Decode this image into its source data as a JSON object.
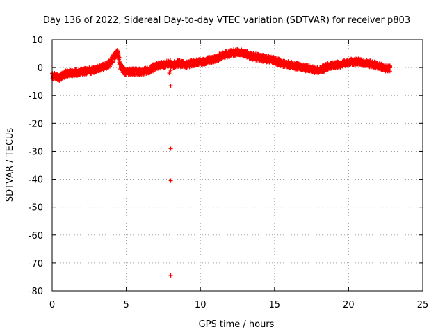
{
  "chart_data": {
    "type": "scatter",
    "title": "Day 136 of 2022, Sidereal Day-to-day VTEC variation (SDTVAR) for receiver p803",
    "xlabel": "GPS time / hours",
    "ylabel": "SDTVAR / TECUs",
    "xlim": [
      0,
      25
    ],
    "ylim": [
      -80,
      10
    ],
    "xticks": [
      0,
      5,
      10,
      15,
      20,
      25
    ],
    "yticks": [
      10,
      0,
      -10,
      -20,
      -30,
      -40,
      -50,
      -60,
      -70,
      -80
    ],
    "grid": true,
    "marker": "plus",
    "color": "#ff0000",
    "series": [
      {
        "name": "SDTVAR",
        "curve": {
          "x": [
            0.0,
            0.5,
            1.0,
            1.5,
            2.0,
            2.5,
            3.0,
            3.5,
            3.9,
            4.2,
            4.4,
            4.6,
            4.9,
            5.5,
            6.0,
            6.5,
            7.0,
            7.5,
            7.9,
            8.2,
            8.5,
            9.0,
            9.5,
            10.0,
            10.5,
            11.0,
            11.5,
            12.0,
            12.5,
            13.0,
            13.5,
            14.0,
            14.5,
            15.0,
            15.5,
            16.0,
            16.5,
            17.0,
            17.5,
            17.8,
            18.2,
            18.7,
            19.2,
            19.7,
            20.2,
            20.7,
            21.2,
            21.8,
            22.3,
            22.8
          ],
          "y": [
            -3.0,
            -3.5,
            -2.0,
            -1.8,
            -1.5,
            -1.2,
            -0.5,
            0.3,
            1.5,
            4.0,
            5.5,
            0.5,
            -1.5,
            -1.5,
            -1.5,
            -1.0,
            0.5,
            1.0,
            1.5,
            1.0,
            1.5,
            1.0,
            1.5,
            2.0,
            2.5,
            3.0,
            4.5,
            5.0,
            5.5,
            5.0,
            4.0,
            3.5,
            3.0,
            2.5,
            1.5,
            1.0,
            0.5,
            0.0,
            -0.5,
            -1.0,
            -0.5,
            0.5,
            1.0,
            1.5,
            2.0,
            2.0,
            1.5,
            1.0,
            0.0,
            -0.5
          ]
        },
        "band": 1.2,
        "outliers": {
          "x": [
            8.0,
            8.0,
            8.0,
            8.0,
            7.9,
            8.0
          ],
          "y": [
            -6.5,
            -29,
            -40.5,
            -74.5,
            -2.0,
            -1.0
          ]
        }
      }
    ]
  }
}
